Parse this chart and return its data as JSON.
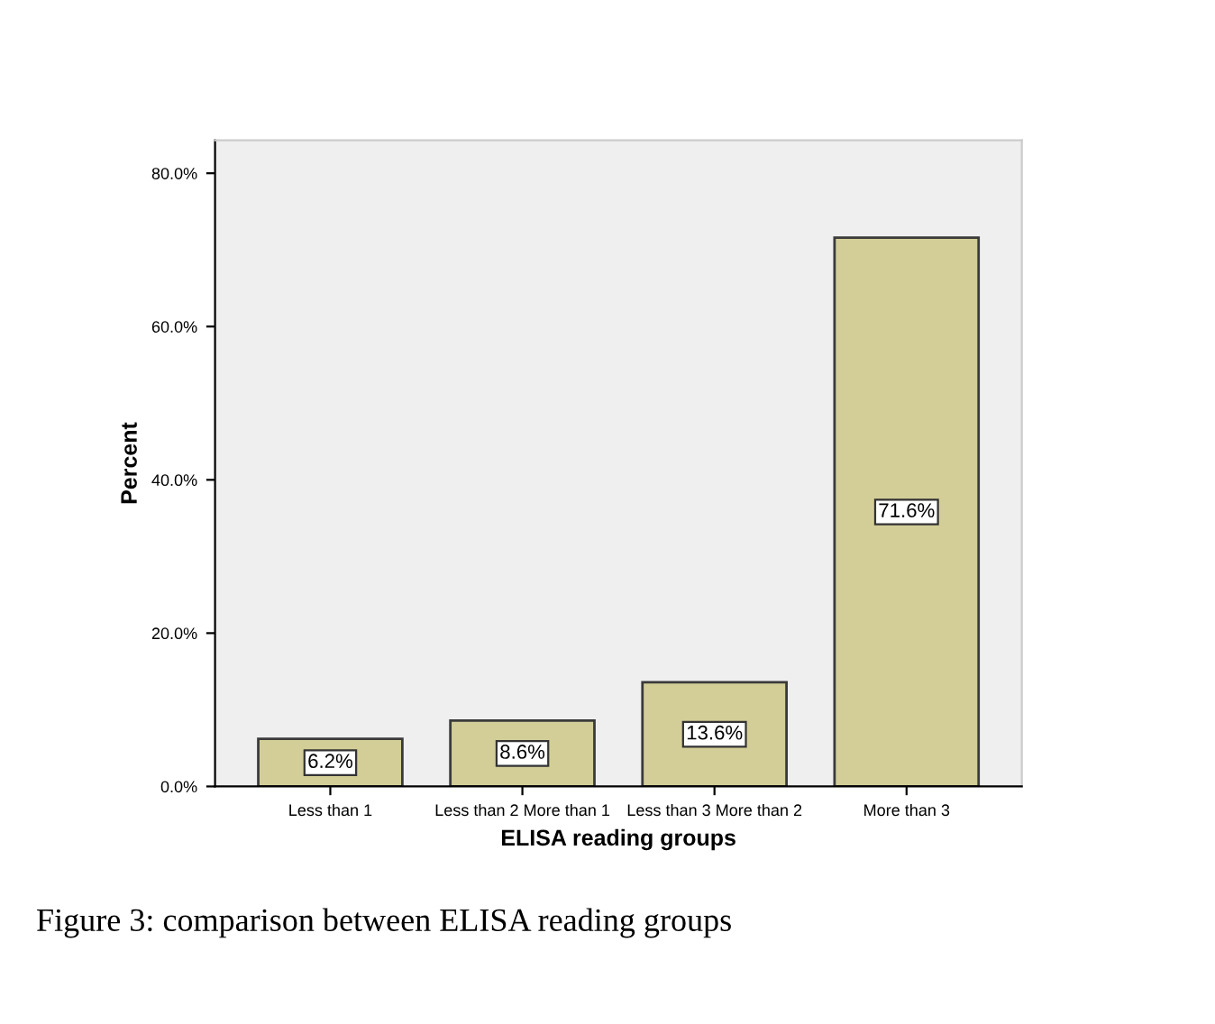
{
  "chart_data": {
    "type": "bar",
    "xlabel": "ELISA reading groups",
    "ylabel": "Percent",
    "categories": [
      "Less than 1",
      "Less than 2 More than 1",
      "Less than 3 More than 2",
      "More than 3"
    ],
    "values": [
      6.2,
      8.6,
      13.6,
      71.6
    ],
    "color": "#d3ce97",
    "value_labels": [
      "6.2%",
      "8.6%",
      "13.6%",
      "71.6%"
    ],
    "ylim": [
      0,
      84.3
    ],
    "yticks": [
      {
        "value": 0,
        "label": "0.0%"
      },
      {
        "value": 20,
        "label": "20.0%"
      },
      {
        "value": 40,
        "label": "40.0%"
      },
      {
        "value": 60,
        "label": "60.0%"
      },
      {
        "value": 80,
        "label": "80.0%"
      }
    ],
    "grid": false,
    "annotations": [
      "Figure 3: comparison between ELISA reading groups"
    ]
  }
}
